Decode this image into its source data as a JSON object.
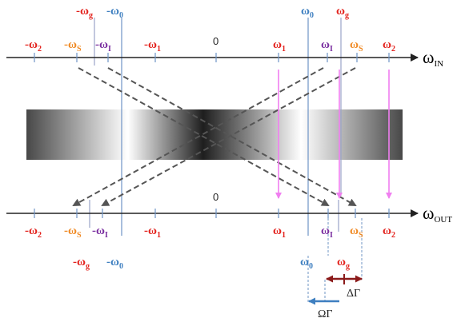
{
  "colors": {
    "red": "#e3231e",
    "orange": "#f08a24",
    "purple": "#7a2fa0",
    "blue": "#3e7fc0",
    "gray": "#555555",
    "pink": "#f07ff0",
    "maroon": "#8b1a1a"
  },
  "axes": {
    "in": {
      "name": "ω",
      "subscript": "IN"
    },
    "out": {
      "name": "ω",
      "subscript": "OUT"
    }
  },
  "labels": {
    "zero": "0",
    "minus": "-",
    "omega": "ω",
    "sub_2": "2",
    "sub_s": "S",
    "sub_i": "I",
    "sub_1": "1",
    "sub_g": "g",
    "sub_0": "0"
  },
  "annotations": {
    "delta_gamma": "ΔΓ",
    "omega_gamma": "ΩΓ"
  }
}
